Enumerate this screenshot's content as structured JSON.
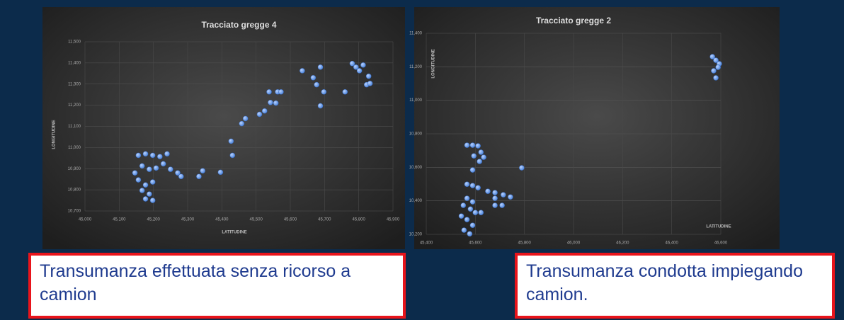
{
  "chart_data": [
    {
      "type": "scatter",
      "title": "Tracciato gregge 4",
      "xlabel": "LATITUDINE",
      "ylabel": "LONGITUDINE",
      "color": "#4f86dc",
      "x": [
        45156,
        45177,
        45198,
        45219,
        45240,
        45167,
        45188,
        45146,
        45208,
        45229,
        45250,
        45156,
        45177,
        45198,
        45167,
        45188,
        45177,
        45198,
        45271,
        45281,
        45333,
        45344,
        45396,
        45427,
        45431,
        45458,
        45469,
        45510,
        45525,
        45542,
        45538,
        45563,
        45573,
        45558,
        45635,
        45667,
        45677,
        45688,
        45688,
        45698,
        45760,
        45781,
        45792,
        45802,
        45813,
        45823,
        45833,
        45829
      ],
      "values": [
        10963,
        10970,
        10963,
        10957,
        10970,
        10913,
        10897,
        10880,
        10903,
        10923,
        10897,
        10847,
        10823,
        10837,
        10797,
        10780,
        10757,
        10750,
        10880,
        10863,
        10863,
        10890,
        10883,
        11030,
        10963,
        11113,
        11137,
        11157,
        11173,
        11213,
        11263,
        11263,
        11263,
        11210,
        11363,
        11330,
        11297,
        11380,
        11197,
        11263,
        11263,
        11397,
        11380,
        11363,
        11390,
        11297,
        11303,
        11337
      ],
      "xlim": [
        45000,
        45900
      ],
      "ylim": [
        10700,
        11500
      ],
      "xticks": [
        {
          "value": 45000,
          "label": "45,000"
        },
        {
          "value": 45100,
          "label": "45,100"
        },
        {
          "value": 45200,
          "label": "45,200"
        },
        {
          "value": 45300,
          "label": "45,300"
        },
        {
          "value": 45400,
          "label": "45,400"
        },
        {
          "value": 45500,
          "label": "45,500"
        },
        {
          "value": 45600,
          "label": "45,600"
        },
        {
          "value": 45700,
          "label": "45,700"
        },
        {
          "value": 45800,
          "label": "45,800"
        },
        {
          "value": 45900,
          "label": "45,900"
        }
      ],
      "yticks": [
        {
          "value": 10700,
          "label": "10,700"
        },
        {
          "value": 10800,
          "label": "10,800"
        },
        {
          "value": 10900,
          "label": "10,900"
        },
        {
          "value": 11000,
          "label": "11,000"
        },
        {
          "value": 11100,
          "label": "11,100"
        },
        {
          "value": 11200,
          "label": "11,200"
        },
        {
          "value": 11300,
          "label": "11,300"
        },
        {
          "value": 11400,
          "label": "11,400"
        },
        {
          "value": 11500,
          "label": "11,500"
        }
      ]
    },
    {
      "type": "scatter",
      "title": "Tracciato gregge 2",
      "xlabel": "LATITUDINE",
      "ylabel": "LONGITUDINE",
      "color": "#4f86dc",
      "x": [
        46566,
        46580,
        46594,
        46571,
        46589,
        46580,
        45566,
        45589,
        45611,
        45623,
        45594,
        45634,
        45617,
        45789,
        45589,
        45566,
        45589,
        45611,
        45651,
        45680,
        45714,
        45743,
        45566,
        45589,
        45551,
        45580,
        45600,
        45623,
        45680,
        45709,
        45543,
        45566,
        45589,
        45554,
        45577,
        45680
      ],
      "values": [
        11260,
        11239,
        11218,
        11176,
        11197,
        11134,
        10732,
        10732,
        10728,
        10690,
        10668,
        10660,
        10635,
        10597,
        10584,
        10499,
        10491,
        10478,
        10457,
        10449,
        10436,
        10423,
        10415,
        10394,
        10373,
        10351,
        10330,
        10330,
        10373,
        10373,
        10309,
        10288,
        10254,
        10225,
        10203,
        10415
      ],
      "xlim": [
        45400,
        46600
      ],
      "ylim": [
        10200,
        11400
      ],
      "xticks": [
        {
          "value": 45400,
          "label": "45,400"
        },
        {
          "value": 45600,
          "label": "45,600"
        },
        {
          "value": 45800,
          "label": "45,800"
        },
        {
          "value": 46000,
          "label": "46,000"
        },
        {
          "value": 46200,
          "label": "46,200"
        },
        {
          "value": 46400,
          "label": "46,400"
        },
        {
          "value": 46600,
          "label": "46,600"
        }
      ],
      "yticks": [
        {
          "value": 10200,
          "label": "10,200"
        },
        {
          "value": 10400,
          "label": "10,400"
        },
        {
          "value": 10600,
          "label": "10,600"
        },
        {
          "value": 10800,
          "label": "10,800"
        },
        {
          "value": 11000,
          "label": "11,000"
        },
        {
          "value": 11200,
          "label": "11,200"
        },
        {
          "value": 11400,
          "label": "11,400"
        }
      ]
    }
  ],
  "captions": [
    "Transumanza effettuata senza ricorso a camion",
    "Transumanza condotta impiegando camion."
  ]
}
